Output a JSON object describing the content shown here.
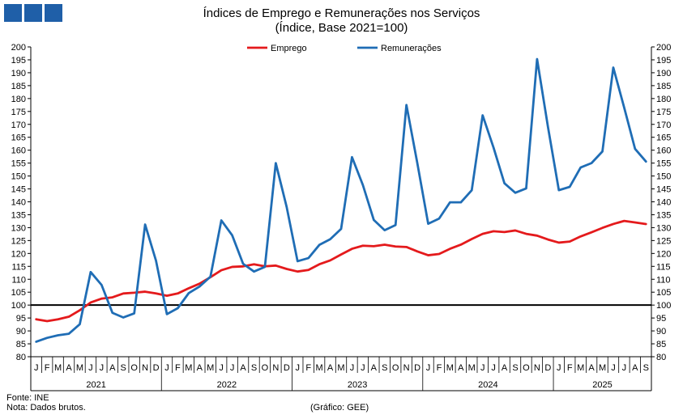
{
  "header": {
    "title": "Índices de Emprego e Remunerações nos Serviços",
    "subtitle": "(Índice, Base 2021=100)"
  },
  "footer": {
    "source": "Fonte: INE",
    "note": "Nota: Dados brutos.",
    "credit": "(Gráfico: GEE)"
  },
  "colors": {
    "brand": "#1f5fa8",
    "emprego": "#e41a1c",
    "remuneracoes": "#1f6db5",
    "baseline": "#000000"
  },
  "chart_data": {
    "type": "line",
    "title": "Índices de Emprego e Remunerações nos Serviços",
    "subtitle": "(Índice, Base 2021=100)",
    "legend_position": "top-center",
    "grid": false,
    "ylim": [
      80,
      200
    ],
    "y_ticks": [
      80,
      85,
      90,
      95,
      100,
      105,
      110,
      115,
      120,
      125,
      130,
      135,
      140,
      145,
      150,
      155,
      160,
      165,
      170,
      175,
      180,
      185,
      190,
      195,
      200
    ],
    "y_axes": [
      "left",
      "right"
    ],
    "reference_line": 100,
    "month_labels": [
      "J",
      "F",
      "M",
      "A",
      "M",
      "J",
      "J",
      "A",
      "S",
      "O",
      "N",
      "D",
      "J",
      "F",
      "M",
      "A",
      "M",
      "J",
      "J",
      "A",
      "S",
      "O",
      "N",
      "D",
      "J",
      "F",
      "M",
      "A",
      "M",
      "J",
      "J",
      "A",
      "S",
      "O",
      "N",
      "D",
      "J",
      "F",
      "M",
      "A",
      "M",
      "J",
      "J",
      "A",
      "S",
      "O",
      "N",
      "D",
      "J",
      "F",
      "M",
      "A",
      "M",
      "J",
      "J",
      "A",
      "S"
    ],
    "year_labels": [
      "2021",
      "2022",
      "2023",
      "2024",
      "2025"
    ],
    "series": [
      {
        "name": "Emprego",
        "values": [
          94.5,
          93.8,
          94.5,
          95.5,
          98.0,
          101.0,
          102.5,
          103.0,
          104.5,
          104.8,
          105.2,
          104.5,
          103.6,
          104.5,
          106.5,
          108.3,
          110.8,
          113.5,
          114.8,
          115.0,
          115.8,
          115.0,
          115.3,
          114.0,
          113.0,
          113.6,
          115.8,
          117.3,
          119.6,
          121.8,
          123.0,
          122.8,
          123.4,
          122.7,
          122.5,
          120.8,
          119.3,
          119.8,
          121.8,
          123.4,
          125.6,
          127.6,
          128.6,
          128.3,
          128.9,
          127.6,
          126.9,
          125.4,
          124.2,
          124.6,
          126.6,
          128.2,
          129.9,
          131.4,
          132.6,
          132.0,
          131.4
        ]
      },
      {
        "name": "Remunerações",
        "values": [
          85.8,
          87.3,
          88.3,
          88.9,
          92.6,
          112.8,
          107.8,
          97.0,
          95.2,
          96.8,
          131.2,
          117.2,
          96.5,
          98.8,
          104.6,
          107.2,
          111.0,
          132.8,
          127.0,
          116.0,
          113.0,
          114.8,
          155.0,
          138.0,
          117.0,
          118.2,
          123.3,
          125.5,
          129.5,
          157.3,
          146.5,
          133.0,
          129.0,
          131.0,
          177.5,
          155.0,
          131.5,
          133.5,
          139.8,
          139.8,
          144.5,
          173.5,
          161.0,
          147.2,
          143.5,
          145.2,
          195.3,
          169.0,
          144.5,
          145.8,
          153.3,
          155.0,
          159.5,
          192.0,
          176.5,
          160.5,
          155.6
        ]
      }
    ]
  }
}
